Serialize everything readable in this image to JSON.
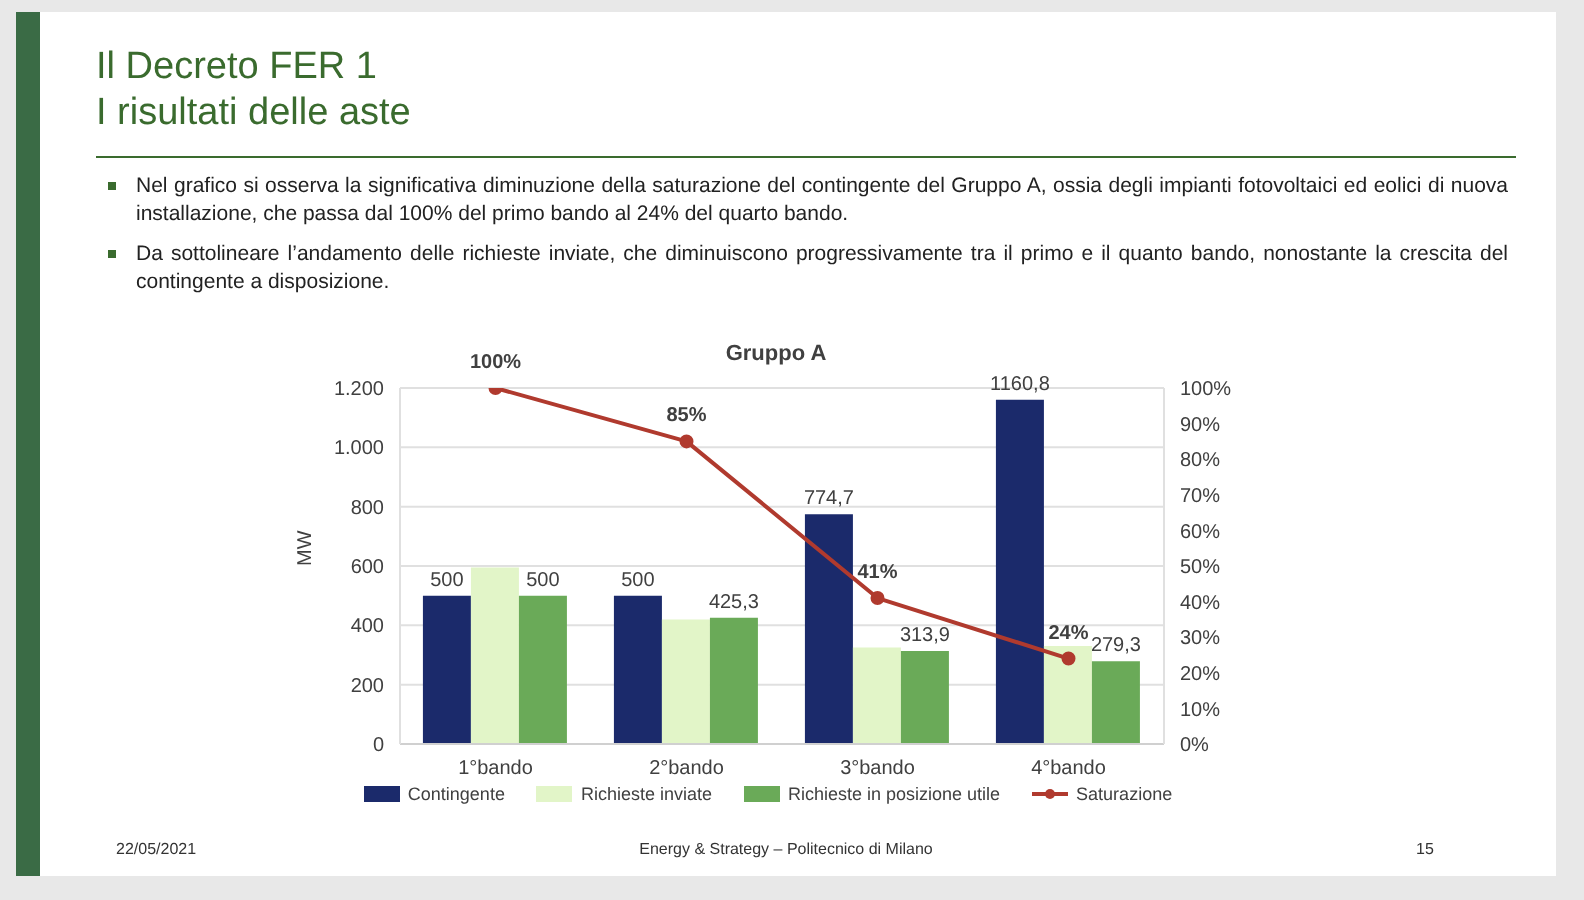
{
  "chart_data": {
    "type": "bar",
    "title": "Gruppo A",
    "subtitle": "Il Decreto FER 1\nI risultati delle aste",
    "annotations": [
      "Nel grafico si osserva la significativa diminuzione della saturazione del contingente del Gruppo A, ossia degli impianti fotovoltaici ed eolici di nuova installazione, che passa dal 100% del primo bando al 24% del quarto bando.",
      "Da sottolineare l’andamento delle richieste inviate, che diminuiscono progressivamente tra il primo e il quanto bando, nonostante la crescita del contingente a disposizione.",
      "22/05/2021",
      "Energy & Strategy – Politecnico di Milano",
      "15"
    ],
    "ylabel": "MW",
    "categories": [
      "1°bando",
      "2°bando",
      "3°bando",
      "4°bando"
    ],
    "series": [
      {
        "name": "Contingente",
        "color": "#1b2a6b",
        "values": [
          500,
          500,
          774.7,
          1160.8
        ],
        "value_labels": [
          "500",
          "500",
          "774,7",
          "1160,8"
        ]
      },
      {
        "name": "Richieste inviate",
        "color": "#e2f5c8",
        "values": [
          595,
          420,
          325,
          330
        ]
      },
      {
        "name": "Richieste in posizione utile",
        "color": "#6aaa58",
        "values": [
          500,
          425.3,
          313.9,
          279.3
        ],
        "value_labels": [
          "500",
          "425,3",
          "313,9",
          "279,3"
        ]
      },
      {
        "name": "Saturazione",
        "type": "line",
        "axis": "y2",
        "color": "#b03a2e",
        "marker": "circle",
        "values": [
          100,
          85,
          41,
          24
        ],
        "value_labels": [
          "100%",
          "85%",
          "41%",
          "24%"
        ]
      }
    ],
    "ylim": [
      0,
      1200
    ],
    "yticks": [
      0,
      200,
      400,
      600,
      800,
      {
        "value": 1000,
        "label": "1.000"
      },
      {
        "value": 1200,
        "label": "1.200"
      }
    ],
    "y2lim": [
      0,
      100
    ],
    "y2ticks": [
      {
        "value": 0,
        "label": "0%"
      },
      {
        "value": 10,
        "label": "10%"
      },
      {
        "value": 20,
        "label": "20%"
      },
      {
        "value": 30,
        "label": "30%"
      },
      {
        "value": 40,
        "label": "40%"
      },
      {
        "value": 50,
        "label": "50%"
      },
      {
        "value": 60,
        "label": "60%"
      },
      {
        "value": 70,
        "label": "70%"
      },
      {
        "value": 80,
        "label": "80%"
      },
      {
        "value": 90,
        "label": "90%"
      },
      {
        "value": 100,
        "label": "100%"
      }
    ],
    "grid": "y",
    "legend": "bottom"
  }
}
